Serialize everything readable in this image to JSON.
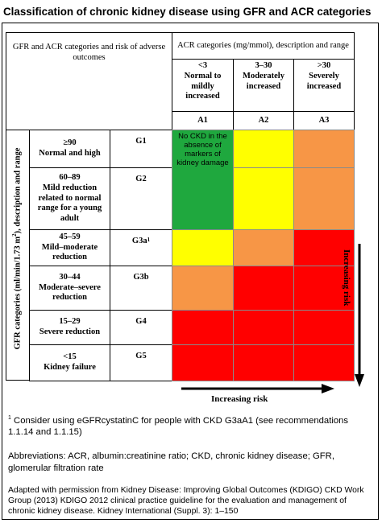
{
  "title": "Classification of chronic kidney disease using GFR and ACR categories",
  "header": {
    "corner": "GFR and ACR categories and risk of adverse outcomes",
    "acr_title": "ACR categories (mg/mmol), description and range",
    "acr": [
      {
        "range": "<3",
        "desc": "Normal to mildly increased",
        "code": "A1"
      },
      {
        "range": "3–30",
        "desc": "Moderately increased",
        "code": "A2"
      },
      {
        "range": ">30",
        "desc": "Severely increased",
        "code": "A3"
      }
    ]
  },
  "gfr_axis_label_prefix": "GFR categories (ml/min/1.73 m",
  "gfr_axis_label_sup": "2",
  "gfr_axis_label_suffix": "), description and range",
  "gfr_rows": [
    {
      "range": "≥90",
      "desc": "Normal and high",
      "code": "G1",
      "colors": [
        "green",
        "yellow",
        "orange"
      ]
    },
    {
      "range": "60–89",
      "desc": "Mild reduction related to normal range for a young adult",
      "code": "G2",
      "colors": [
        "green",
        "yellow",
        "orange"
      ]
    },
    {
      "range": "45–59",
      "desc": "Mild–moderate reduction",
      "code": "G3a",
      "code_sup": "1",
      "colors": [
        "yellow",
        "orange",
        "red"
      ]
    },
    {
      "range": "30–44",
      "desc": "Moderate–severe reduction",
      "code": "G3b",
      "colors": [
        "orange",
        "red",
        "red"
      ]
    },
    {
      "range": "15–29",
      "desc": "Severe reduction",
      "code": "G4",
      "colors": [
        "red",
        "red",
        "red"
      ]
    },
    {
      "range": "<15",
      "desc": "Kidney failure",
      "code": "G5",
      "colors": [
        "red",
        "red",
        "red"
      ]
    }
  ],
  "green_note": "No CKD in the absence of markers of kidney damage",
  "risk_vertical": "Increasing risk",
  "risk_horizontal": "Increasing risk",
  "footnote_sup": "1",
  "footnote": " Consider using eGFRcystatinC for people with CKD G3aA1 (see recommendations 1.1.14 and 1.1.15)",
  "abbreviations": "Abbreviations: ACR, albumin:creatinine ratio; CKD, chronic kidney disease; GFR, glomerular filtration rate",
  "source": "Adapted with permission from Kidney Disease: Improving Global Outcomes (KDIGO) CKD Work Group (2013) KDIGO 2012 clinical practice guideline for the evaluation and management of chronic kidney disease. Kidney International (Suppl. 3): 1–150",
  "colors": {
    "green": "#1fa83e",
    "yellow": "#ffff00",
    "orange": "#f79646",
    "red": "#ff0000"
  }
}
